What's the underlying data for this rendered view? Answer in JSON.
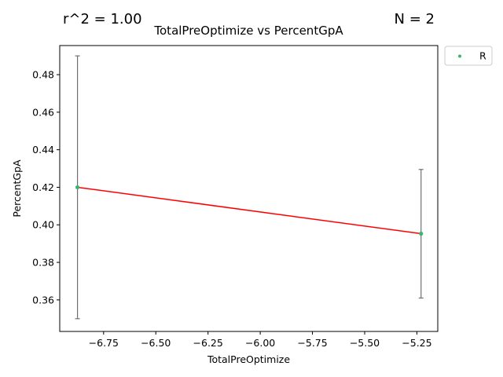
{
  "chart_data": {
    "type": "scatter",
    "title": "TotalPreOptimize vs PercentGpA",
    "xlabel": "TotalPreOptimize",
    "ylabel": "PercentGpA",
    "annotations": {
      "r2": "r^2 = 1.00",
      "n": "N = 2"
    },
    "xlim": [
      -6.96,
      -5.15
    ],
    "ylim": [
      0.3432,
      0.4955
    ],
    "xticks": [
      -6.75,
      -6.5,
      -6.25,
      -6.0,
      -5.75,
      -5.5,
      -5.25
    ],
    "xtick_labels": [
      "−6.75",
      "−6.50",
      "−6.25",
      "−6.00",
      "−5.75",
      "−5.50",
      "−5.25"
    ],
    "yticks": [
      0.36,
      0.38,
      0.4,
      0.42,
      0.44,
      0.46,
      0.48
    ],
    "ytick_labels": [
      "0.36",
      "0.38",
      "0.40",
      "0.42",
      "0.44",
      "0.46",
      "0.48"
    ],
    "series": [
      {
        "name": "R",
        "color": "#3cb371",
        "points": [
          {
            "x": -6.875,
            "y": 0.42,
            "err_low": 0.35,
            "err_high": 0.49
          },
          {
            "x": -5.23,
            "y": 0.3953,
            "err_low": 0.361,
            "err_high": 0.4295
          }
        ]
      }
    ],
    "fit_line": {
      "color": "#ff0000",
      "x": [
        -6.875,
        -5.23
      ],
      "y": [
        0.42,
        0.3953
      ]
    },
    "errorbar_color": "#707070",
    "grid": false,
    "legend_position": "outside top-right"
  }
}
